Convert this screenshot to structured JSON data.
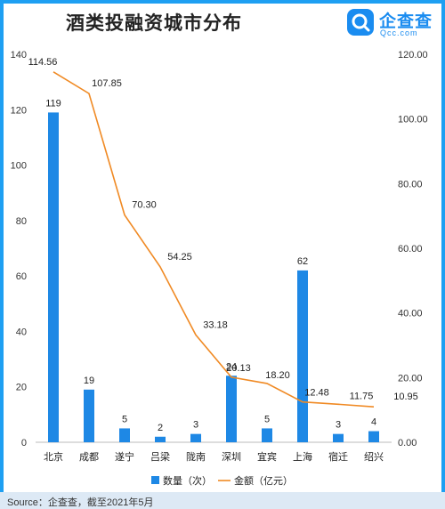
{
  "title": "酒类投融资城市分布",
  "logo": {
    "name": "企查查",
    "sub": "Qcc.com"
  },
  "footer": {
    "source": "Source：企查查，截至2021年5月"
  },
  "colors": {
    "bar": "#1e88e5",
    "line": "#f08a24",
    "accent": "#1a8cf0"
  },
  "chart_data": {
    "type": "bar",
    "categories": [
      "北京",
      "成都",
      "遂宁",
      "吕梁",
      "陇南",
      "深圳",
      "宜宾",
      "上海",
      "宿迁",
      "绍兴"
    ],
    "series": [
      {
        "name": "数量（次）",
        "type": "bar",
        "axis": "left",
        "values": [
          119,
          19,
          5,
          2,
          3,
          24,
          5,
          62,
          3,
          4
        ],
        "labels": [
          "119",
          "19",
          "5",
          "2",
          "3",
          "24",
          "5",
          "62",
          "3",
          "4"
        ]
      },
      {
        "name": "金额（亿元）",
        "type": "line",
        "axis": "right",
        "values": [
          114.56,
          107.85,
          70.3,
          54.25,
          33.18,
          20.13,
          18.2,
          12.48,
          11.75,
          10.95
        ],
        "labels": [
          "114.56",
          "107.85",
          "70.30",
          "54.25",
          "33.18",
          "20.13",
          "18.20",
          "12.48",
          "11.75",
          "10.95"
        ]
      }
    ],
    "y_left": {
      "lim": [
        0,
        140
      ],
      "ticks": [
        "0",
        "20",
        "40",
        "60",
        "80",
        "100",
        "120",
        "140"
      ]
    },
    "y_right": {
      "lim": [
        0,
        120
      ],
      "ticks": [
        "0.00",
        "20.00",
        "40.00",
        "60.00",
        "80.00",
        "100.00",
        "120.00"
      ]
    },
    "legend_position": "bottom-center",
    "grid": false
  }
}
